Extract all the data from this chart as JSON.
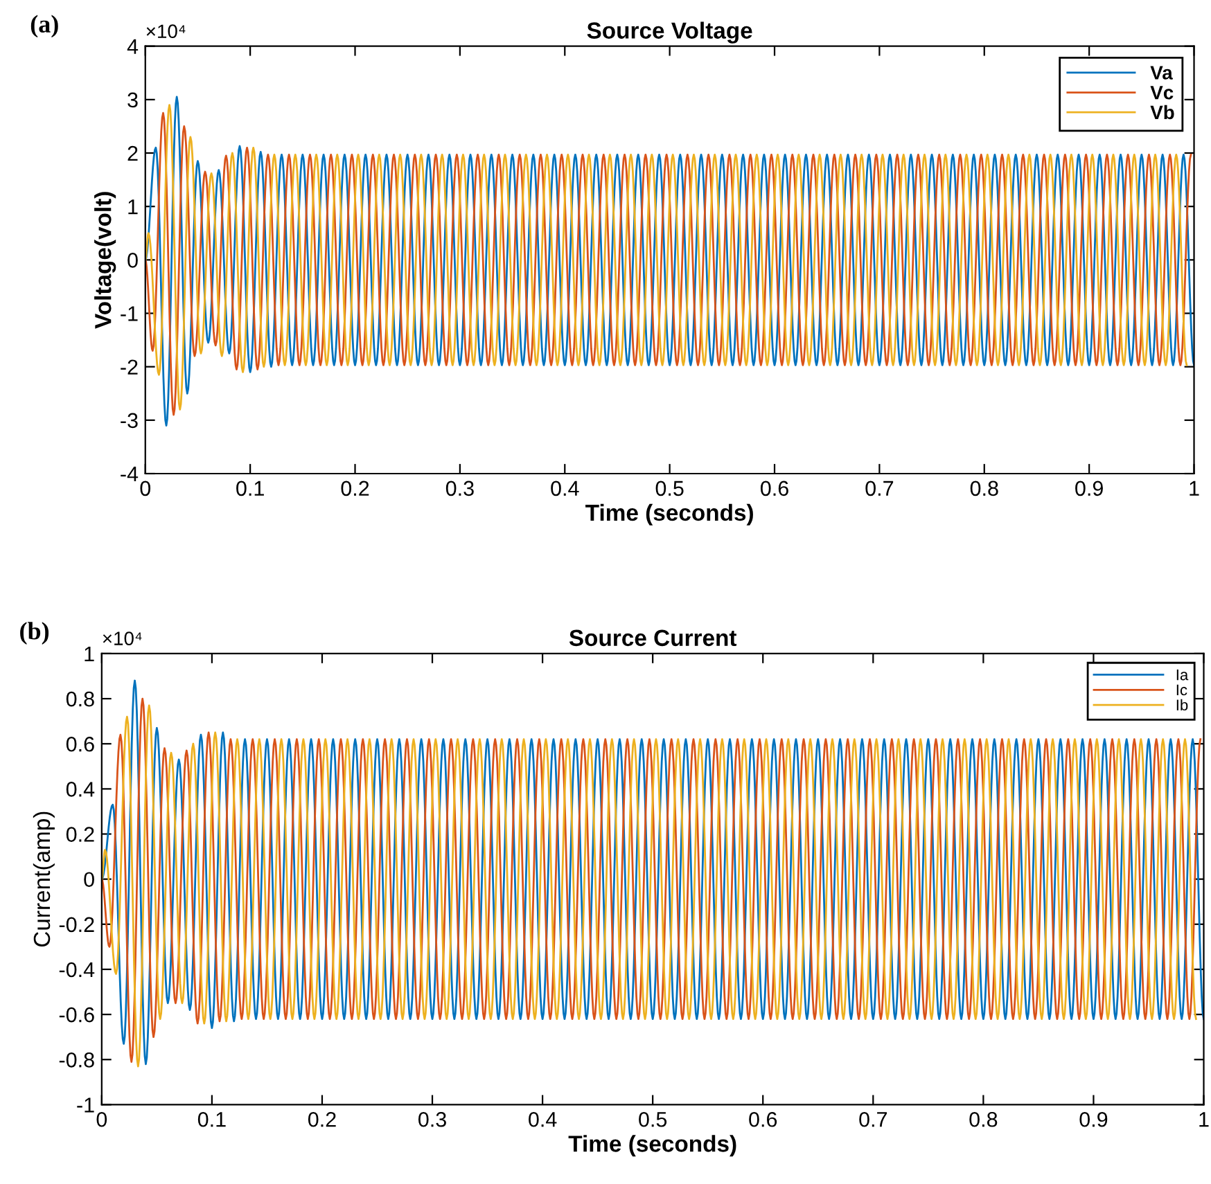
{
  "chart_data": [
    {
      "type": "line",
      "title": "Source Voltage",
      "xlabel": "Time (seconds)",
      "ylabel": "Voltage(volt)",
      "annotations": [
        "(a)",
        "×10⁴"
      ],
      "legend": "top right",
      "grid": false,
      "marker": "none",
      "line_style": "solid",
      "xlim": [
        0,
        1
      ],
      "xticks": [
        0,
        0.1,
        0.2,
        0.3,
        0.4,
        0.5,
        0.6,
        0.7,
        0.8,
        0.9,
        1
      ],
      "ylim": [
        -4,
        4
      ],
      "yticks": [
        -4,
        -3,
        -2,
        -1,
        0,
        1,
        2,
        3,
        4
      ],
      "series": [
        {
          "name": "Va",
          "color": "#0072bd",
          "x": [
            0,
            0.01,
            0.02,
            0.03,
            0.04,
            0.05,
            0.06,
            0.07,
            0.08,
            0.09,
            0.1,
            0.11,
            0.12,
            0.13,
            0.14,
            0.15,
            0.16,
            0.17,
            0.18,
            0.19,
            0.2,
            0.21,
            0.22,
            0.23,
            0.24,
            0.25,
            0.26,
            0.27,
            0.28,
            0.29,
            0.3,
            0.31,
            0.32,
            0.33,
            0.34,
            0.35,
            0.36,
            0.37,
            0.38,
            0.39,
            0.4,
            0.41,
            0.42,
            0.43,
            0.44,
            0.45,
            0.46,
            0.47,
            0.48,
            0.49,
            0.5,
            0.51,
            0.52,
            0.53,
            0.54,
            0.55,
            0.56,
            0.57,
            0.58,
            0.59,
            0.6,
            0.61,
            0.62,
            0.63,
            0.64,
            0.65,
            0.66,
            0.67,
            0.68,
            0.69,
            0.7,
            0.71,
            0.72,
            0.73,
            0.74,
            0.75,
            0.76,
            0.77,
            0.78,
            0.79,
            0.8,
            0.81,
            0.82,
            0.83,
            0.84,
            0.85,
            0.86,
            0.87,
            0.88,
            0.89,
            0.9,
            0.91,
            0.92,
            0.93,
            0.94,
            0.95,
            0.96,
            0.97,
            0.98,
            0.99,
            1
          ],
          "values": [
            0,
            2.1,
            -3.1,
            3.05,
            -2.5,
            1.85,
            -1.55,
            1.68,
            -1.75,
            2.13,
            -2.1,
            2.02,
            -2.0,
            1.97,
            -1.97,
            1.97,
            -1.97,
            1.97,
            -1.97,
            1.97,
            -1.97,
            1.97,
            -1.97,
            1.97,
            -1.97,
            1.97,
            -1.97,
            1.97,
            -1.97,
            1.97,
            -1.97,
            1.97,
            -1.97,
            1.97,
            -1.97,
            1.97,
            -1.97,
            1.97,
            -1.97,
            1.97,
            -1.97,
            1.97,
            -1.97,
            1.97,
            -1.97,
            1.97,
            -1.97,
            1.97,
            -1.97,
            1.97,
            -1.97,
            1.97,
            -1.97,
            1.97,
            -1.97,
            1.97,
            -1.97,
            1.97,
            -1.97,
            1.97,
            -1.97,
            1.97,
            -1.97,
            1.97,
            -1.97,
            1.97,
            -1.97,
            1.97,
            -1.97,
            1.97,
            -1.97,
            1.97,
            -1.97,
            1.97,
            -1.97,
            1.97,
            -1.97,
            1.97,
            -1.97,
            1.97,
            -1.97,
            1.97,
            -1.97,
            1.97,
            -1.97,
            1.97,
            -1.97,
            1.97,
            -1.97,
            1.97,
            -1.97,
            1.97,
            -1.97,
            1.97,
            -1.97,
            1.97,
            -1.97,
            1.97,
            -1.97,
            1.97,
            -1.97
          ]
        },
        {
          "name": "Vc",
          "color": "#d95319",
          "x": [
            0,
            0.007,
            0.017,
            0.027,
            0.037,
            0.047,
            0.057,
            0.067,
            0.077,
            0.087,
            0.097,
            0.107,
            0.117,
            0.127,
            0.137,
            0.147,
            0.157,
            0.167,
            0.177,
            0.187,
            0.197,
            0.207,
            0.217,
            0.227,
            0.237,
            0.247,
            0.257,
            0.267,
            0.277,
            0.287,
            0.297,
            0.307,
            0.317,
            0.327,
            0.337,
            0.347,
            0.357,
            0.367,
            0.377,
            0.387,
            0.397,
            0.407,
            0.417,
            0.427,
            0.437,
            0.447,
            0.457,
            0.467,
            0.477,
            0.487,
            0.497,
            0.507,
            0.517,
            0.527,
            0.537,
            0.547,
            0.557,
            0.567,
            0.577,
            0.587,
            0.597,
            0.607,
            0.617,
            0.627,
            0.637,
            0.647,
            0.657,
            0.667,
            0.677,
            0.687,
            0.697,
            0.707,
            0.717,
            0.727,
            0.737,
            0.747,
            0.757,
            0.767,
            0.777,
            0.787,
            0.797,
            0.807,
            0.817,
            0.827,
            0.837,
            0.847,
            0.857,
            0.867,
            0.877,
            0.887,
            0.897,
            0.907,
            0.917,
            0.927,
            0.937,
            0.947,
            0.957,
            0.967,
            0.977,
            0.987,
            0.997
          ],
          "values": [
            0,
            -1.7,
            2.75,
            -2.9,
            2.5,
            -1.8,
            1.65,
            -1.6,
            1.95,
            -2.05,
            2.1,
            -2.05,
            1.97,
            -1.97,
            1.97,
            -1.97,
            1.97,
            -1.97,
            1.97,
            -1.97,
            1.97,
            -1.97,
            1.97,
            -1.97,
            1.97,
            -1.97,
            1.97,
            -1.97,
            1.97,
            -1.97,
            1.97,
            -1.97,
            1.97,
            -1.97,
            1.97,
            -1.97,
            1.97,
            -1.97,
            1.97,
            -1.97,
            1.97,
            -1.97,
            1.97,
            -1.97,
            1.97,
            -1.97,
            1.97,
            -1.97,
            1.97,
            -1.97,
            1.97,
            -1.97,
            1.97,
            -1.97,
            1.97,
            -1.97,
            1.97,
            -1.97,
            1.97,
            -1.97,
            1.97,
            -1.97,
            1.97,
            -1.97,
            1.97,
            -1.97,
            1.97,
            -1.97,
            1.97,
            -1.97,
            1.97,
            -1.97,
            1.97,
            -1.97,
            1.97,
            -1.97,
            1.97,
            -1.97,
            1.97,
            -1.97,
            1.97,
            -1.97,
            1.97,
            -1.97,
            1.97,
            -1.97,
            1.97,
            -1.97,
            1.97,
            -1.97,
            1.97,
            -1.97,
            1.97,
            -1.97,
            1.97,
            -1.97,
            1.97,
            -1.97,
            1.97,
            -1.97,
            1.97
          ]
        },
        {
          "name": "Vb",
          "color": "#edb120",
          "x": [
            0,
            0.003,
            0.013,
            0.023,
            0.033,
            0.043,
            0.053,
            0.063,
            0.073,
            0.083,
            0.093,
            0.103,
            0.113,
            0.123,
            0.133,
            0.143,
            0.153,
            0.163,
            0.173,
            0.183,
            0.193,
            0.203,
            0.213,
            0.223,
            0.233,
            0.243,
            0.253,
            0.263,
            0.273,
            0.283,
            0.293,
            0.303,
            0.313,
            0.323,
            0.333,
            0.343,
            0.353,
            0.363,
            0.373,
            0.383,
            0.393,
            0.403,
            0.413,
            0.423,
            0.433,
            0.443,
            0.453,
            0.463,
            0.473,
            0.483,
            0.493,
            0.503,
            0.513,
            0.523,
            0.533,
            0.543,
            0.553,
            0.563,
            0.573,
            0.583,
            0.593,
            0.603,
            0.613,
            0.623,
            0.633,
            0.643,
            0.653,
            0.663,
            0.673,
            0.683,
            0.693,
            0.703,
            0.713,
            0.723,
            0.733,
            0.743,
            0.753,
            0.763,
            0.773,
            0.783,
            0.793,
            0.803,
            0.813,
            0.823,
            0.833,
            0.843,
            0.853,
            0.863,
            0.873,
            0.883,
            0.893,
            0.903,
            0.913,
            0.923,
            0.933,
            0.943,
            0.953,
            0.963,
            0.973,
            0.983,
            0.993
          ],
          "values": [
            0,
            0.5,
            -2.15,
            2.9,
            -2.8,
            2.3,
            -1.75,
            1.62,
            -1.8,
            2.0,
            -2.1,
            2.1,
            -2.0,
            1.97,
            -1.97,
            1.97,
            -1.97,
            1.97,
            -1.97,
            1.97,
            -1.97,
            1.97,
            -1.97,
            1.97,
            -1.97,
            1.97,
            -1.97,
            1.97,
            -1.97,
            1.97,
            -1.97,
            1.97,
            -1.97,
            1.97,
            -1.97,
            1.97,
            -1.97,
            1.97,
            -1.97,
            1.97,
            -1.97,
            1.97,
            -1.97,
            1.97,
            -1.97,
            1.97,
            -1.97,
            1.97,
            -1.97,
            1.97,
            -1.97,
            1.97,
            -1.97,
            1.97,
            -1.97,
            1.97,
            -1.97,
            1.97,
            -1.97,
            1.97,
            -1.97,
            1.97,
            -1.97,
            1.97,
            -1.97,
            1.97,
            -1.97,
            1.97,
            -1.97,
            1.97,
            -1.97,
            1.97,
            -1.97,
            1.97,
            -1.97,
            1.97,
            -1.97,
            1.97,
            -1.97,
            1.97,
            -1.97,
            1.97,
            -1.97,
            1.97,
            -1.97,
            1.97,
            -1.97,
            1.97,
            -1.97,
            1.97,
            -1.97,
            1.97,
            -1.97,
            1.97,
            -1.97,
            1.97,
            -1.97,
            1.97,
            -1.97,
            1.97,
            -1.97
          ]
        }
      ]
    },
    {
      "type": "line",
      "title": "Source Current",
      "xlabel": "Time (seconds)",
      "ylabel": "Current(amp)",
      "annotations": [
        "(b)",
        "×10⁴"
      ],
      "legend": "top right",
      "grid": false,
      "marker": "none",
      "line_style": "solid",
      "xlim": [
        0,
        1
      ],
      "xticks": [
        0,
        0.1,
        0.2,
        0.3,
        0.4,
        0.5,
        0.6,
        0.7,
        0.8,
        0.9,
        1
      ],
      "ylim": [
        -1,
        1
      ],
      "yticks": [
        -1,
        -0.8,
        -0.6,
        -0.4,
        -0.2,
        0,
        0.2,
        0.4,
        0.6,
        0.8,
        1
      ],
      "series": [
        {
          "name": "Ia",
          "color": "#0072bd",
          "x": [
            0,
            0.01,
            0.02,
            0.03,
            0.04,
            0.05,
            0.06,
            0.07,
            0.08,
            0.09,
            0.1,
            0.11,
            0.12,
            0.13,
            0.14,
            0.15,
            0.16,
            0.17,
            0.18,
            0.19,
            0.2,
            0.21,
            0.22,
            0.23,
            0.24,
            0.25,
            0.26,
            0.27,
            0.28,
            0.29,
            0.3,
            0.31,
            0.32,
            0.33,
            0.34,
            0.35,
            0.36,
            0.37,
            0.38,
            0.39,
            0.4,
            0.41,
            0.42,
            0.43,
            0.44,
            0.45,
            0.46,
            0.47,
            0.48,
            0.49,
            0.5,
            0.51,
            0.52,
            0.53,
            0.54,
            0.55,
            0.56,
            0.57,
            0.58,
            0.59,
            0.6,
            0.61,
            0.62,
            0.63,
            0.64,
            0.65,
            0.66,
            0.67,
            0.68,
            0.69,
            0.7,
            0.71,
            0.72,
            0.73,
            0.74,
            0.75,
            0.76,
            0.77,
            0.78,
            0.79,
            0.8,
            0.81,
            0.82,
            0.83,
            0.84,
            0.85,
            0.86,
            0.87,
            0.88,
            0.89,
            0.9,
            0.91,
            0.92,
            0.93,
            0.94,
            0.95,
            0.96,
            0.97,
            0.98,
            0.99,
            1
          ],
          "values": [
            0,
            0.33,
            -0.73,
            0.88,
            -0.82,
            0.67,
            -0.55,
            0.53,
            -0.58,
            0.64,
            -0.66,
            0.65,
            -0.63,
            0.62,
            -0.62,
            0.62,
            -0.62,
            0.62,
            -0.62,
            0.62,
            -0.62,
            0.62,
            -0.62,
            0.62,
            -0.62,
            0.62,
            -0.62,
            0.62,
            -0.62,
            0.62,
            -0.62,
            0.62,
            -0.62,
            0.62,
            -0.62,
            0.62,
            -0.62,
            0.62,
            -0.62,
            0.62,
            -0.62,
            0.62,
            -0.62,
            0.62,
            -0.62,
            0.62,
            -0.62,
            0.62,
            -0.62,
            0.62,
            -0.62,
            0.62,
            -0.62,
            0.62,
            -0.62,
            0.62,
            -0.62,
            0.62,
            -0.62,
            0.62,
            -0.62,
            0.62,
            -0.62,
            0.62,
            -0.62,
            0.62,
            -0.62,
            0.62,
            -0.62,
            0.62,
            -0.62,
            0.62,
            -0.62,
            0.62,
            -0.62,
            0.62,
            -0.62,
            0.62,
            -0.62,
            0.62,
            -0.62,
            0.62,
            -0.62,
            0.62,
            -0.62,
            0.62,
            -0.62,
            0.62,
            -0.62,
            0.62,
            -0.62,
            0.62,
            -0.62,
            0.62,
            -0.62,
            0.62,
            -0.62,
            0.62,
            -0.62,
            0.62,
            -0.62
          ]
        },
        {
          "name": "Ic",
          "color": "#d95319",
          "x": [
            0,
            0.007,
            0.017,
            0.027,
            0.037,
            0.047,
            0.057,
            0.067,
            0.077,
            0.087,
            0.097,
            0.107,
            0.117,
            0.127,
            0.137,
            0.147,
            0.157,
            0.167,
            0.177,
            0.187,
            0.197,
            0.207,
            0.217,
            0.227,
            0.237,
            0.247,
            0.257,
            0.267,
            0.277,
            0.287,
            0.297,
            0.307,
            0.317,
            0.327,
            0.337,
            0.347,
            0.357,
            0.367,
            0.377,
            0.387,
            0.397,
            0.407,
            0.417,
            0.427,
            0.437,
            0.447,
            0.457,
            0.467,
            0.477,
            0.487,
            0.497,
            0.507,
            0.517,
            0.527,
            0.537,
            0.547,
            0.557,
            0.567,
            0.577,
            0.587,
            0.597,
            0.607,
            0.617,
            0.627,
            0.637,
            0.647,
            0.657,
            0.667,
            0.677,
            0.687,
            0.697,
            0.707,
            0.717,
            0.727,
            0.737,
            0.747,
            0.757,
            0.767,
            0.777,
            0.787,
            0.797,
            0.807,
            0.817,
            0.827,
            0.837,
            0.847,
            0.857,
            0.867,
            0.877,
            0.887,
            0.897,
            0.907,
            0.917,
            0.927,
            0.937,
            0.947,
            0.957,
            0.967,
            0.977,
            0.987,
            0.997
          ],
          "values": [
            0,
            -0.3,
            0.64,
            -0.81,
            0.8,
            -0.7,
            0.58,
            -0.55,
            0.57,
            -0.64,
            0.65,
            -0.63,
            0.62,
            -0.62,
            0.62,
            -0.62,
            0.62,
            -0.62,
            0.62,
            -0.62,
            0.62,
            -0.62,
            0.62,
            -0.62,
            0.62,
            -0.62,
            0.62,
            -0.62,
            0.62,
            -0.62,
            0.62,
            -0.62,
            0.62,
            -0.62,
            0.62,
            -0.62,
            0.62,
            -0.62,
            0.62,
            -0.62,
            0.62,
            -0.62,
            0.62,
            -0.62,
            0.62,
            -0.62,
            0.62,
            -0.62,
            0.62,
            -0.62,
            0.62,
            -0.62,
            0.62,
            -0.62,
            0.62,
            -0.62,
            0.62,
            -0.62,
            0.62,
            -0.62,
            0.62,
            -0.62,
            0.62,
            -0.62,
            0.62,
            -0.62,
            0.62,
            -0.62,
            0.62,
            -0.62,
            0.62,
            -0.62,
            0.62,
            -0.62,
            0.62,
            -0.62,
            0.62,
            -0.62,
            0.62,
            -0.62,
            0.62,
            -0.62,
            0.62,
            -0.62,
            0.62,
            -0.62,
            0.62,
            -0.62,
            0.62,
            -0.62,
            0.62,
            -0.62,
            0.62,
            -0.62,
            0.62,
            -0.62,
            0.62,
            -0.62,
            0.62,
            -0.62,
            0.62
          ]
        },
        {
          "name": "Ib",
          "color": "#edb120",
          "x": [
            0,
            0.003,
            0.013,
            0.023,
            0.033,
            0.043,
            0.053,
            0.063,
            0.073,
            0.083,
            0.093,
            0.103,
            0.113,
            0.123,
            0.133,
            0.143,
            0.153,
            0.163,
            0.173,
            0.183,
            0.193,
            0.203,
            0.213,
            0.223,
            0.233,
            0.243,
            0.253,
            0.263,
            0.273,
            0.283,
            0.293,
            0.303,
            0.313,
            0.323,
            0.333,
            0.343,
            0.353,
            0.363,
            0.373,
            0.383,
            0.393,
            0.403,
            0.413,
            0.423,
            0.433,
            0.443,
            0.453,
            0.463,
            0.473,
            0.483,
            0.493,
            0.503,
            0.513,
            0.523,
            0.533,
            0.543,
            0.553,
            0.563,
            0.573,
            0.583,
            0.593,
            0.603,
            0.613,
            0.623,
            0.633,
            0.643,
            0.653,
            0.663,
            0.673,
            0.683,
            0.693,
            0.703,
            0.713,
            0.723,
            0.733,
            0.743,
            0.753,
            0.763,
            0.773,
            0.783,
            0.793,
            0.803,
            0.813,
            0.823,
            0.833,
            0.843,
            0.853,
            0.863,
            0.873,
            0.883,
            0.893,
            0.903,
            0.913,
            0.923,
            0.933,
            0.943,
            0.953,
            0.963,
            0.973,
            0.983,
            0.993
          ],
          "values": [
            0,
            0.13,
            -0.42,
            0.72,
            -0.83,
            0.77,
            -0.62,
            0.56,
            -0.55,
            0.6,
            -0.64,
            0.65,
            -0.63,
            0.62,
            -0.62,
            0.62,
            -0.62,
            0.62,
            -0.62,
            0.62,
            -0.62,
            0.62,
            -0.62,
            0.62,
            -0.62,
            0.62,
            -0.62,
            0.62,
            -0.62,
            0.62,
            -0.62,
            0.62,
            -0.62,
            0.62,
            -0.62,
            0.62,
            -0.62,
            0.62,
            -0.62,
            0.62,
            -0.62,
            0.62,
            -0.62,
            0.62,
            -0.62,
            0.62,
            -0.62,
            0.62,
            -0.62,
            0.62,
            -0.62,
            0.62,
            -0.62,
            0.62,
            -0.62,
            0.62,
            -0.62,
            0.62,
            -0.62,
            0.62,
            -0.62,
            0.62,
            -0.62,
            0.62,
            -0.62,
            0.62,
            -0.62,
            0.62,
            -0.62,
            0.62,
            -0.62,
            0.62,
            -0.62,
            0.62,
            -0.62,
            0.62,
            -0.62,
            0.62,
            -0.62,
            0.62,
            -0.62,
            0.62,
            -0.62,
            0.62,
            -0.62,
            0.62,
            -0.62,
            0.62,
            -0.62,
            0.62,
            -0.62,
            0.62,
            -0.62,
            0.62,
            -0.62,
            0.62,
            -0.62,
            0.62,
            -0.62,
            0.62,
            -0.62
          ]
        }
      ]
    }
  ]
}
